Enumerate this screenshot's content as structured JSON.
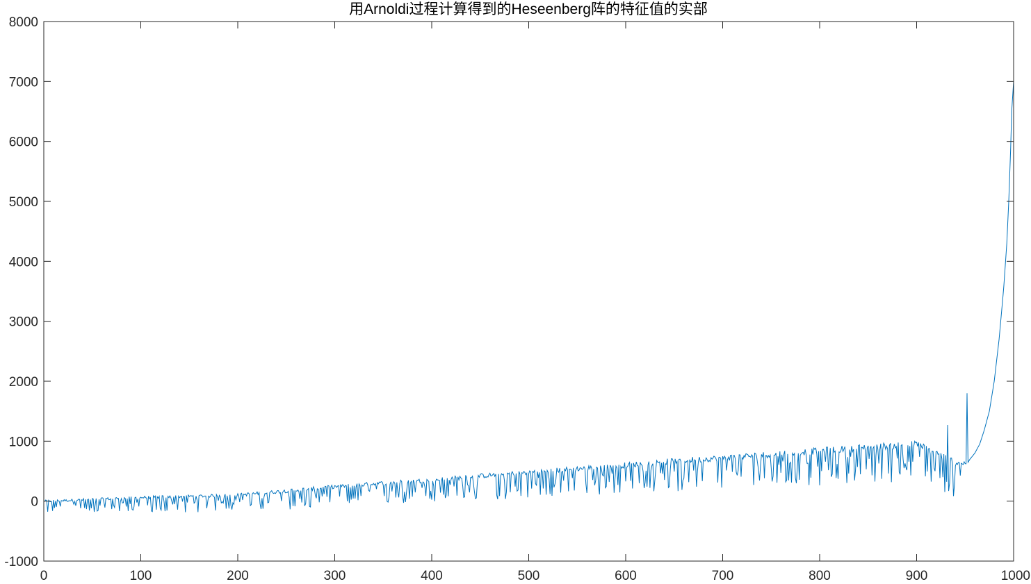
{
  "chart_data": {
    "type": "line",
    "title": "用Arnoldi过程计算得到的Heseenberg阵的特征值的实部",
    "xlabel": "",
    "ylabel": "",
    "xlim": [
      0,
      1000
    ],
    "ylim": [
      -1000,
      8000
    ],
    "xticks": [
      "0",
      "100",
      "200",
      "300",
      "400",
      "500",
      "600",
      "700",
      "800",
      "900",
      "1000"
    ],
    "yticks": [
      "-1000",
      "0",
      "1000",
      "2000",
      "3000",
      "4000",
      "5000",
      "6000",
      "7000",
      "8000"
    ],
    "grid": false,
    "box": true,
    "series": [
      {
        "color": "#0072BD",
        "x": [
          1,
          30,
          60,
          100,
          150,
          200,
          250,
          300,
          350,
          400,
          450,
          500,
          550,
          600,
          650,
          700,
          750,
          800,
          850,
          900,
          920,
          940,
          952,
          955,
          960,
          965,
          970,
          975,
          980,
          985,
          990,
          993,
          995,
          997,
          998,
          1000
        ],
        "y": [
          0,
          15,
          35,
          60,
          80,
          100,
          170,
          240,
          300,
          350,
          420,
          480,
          540,
          600,
          670,
          720,
          780,
          840,
          900,
          950,
          800,
          650,
          620,
          700,
          800,
          950,
          1200,
          1500,
          2000,
          2700,
          3600,
          4300,
          5000,
          5900,
          6500,
          7000
        ]
      }
    ],
    "annotations": [
      {
        "x": 952,
        "y": 1800,
        "label": ""
      },
      {
        "x": 932,
        "y": 1270,
        "label": ""
      }
    ]
  }
}
